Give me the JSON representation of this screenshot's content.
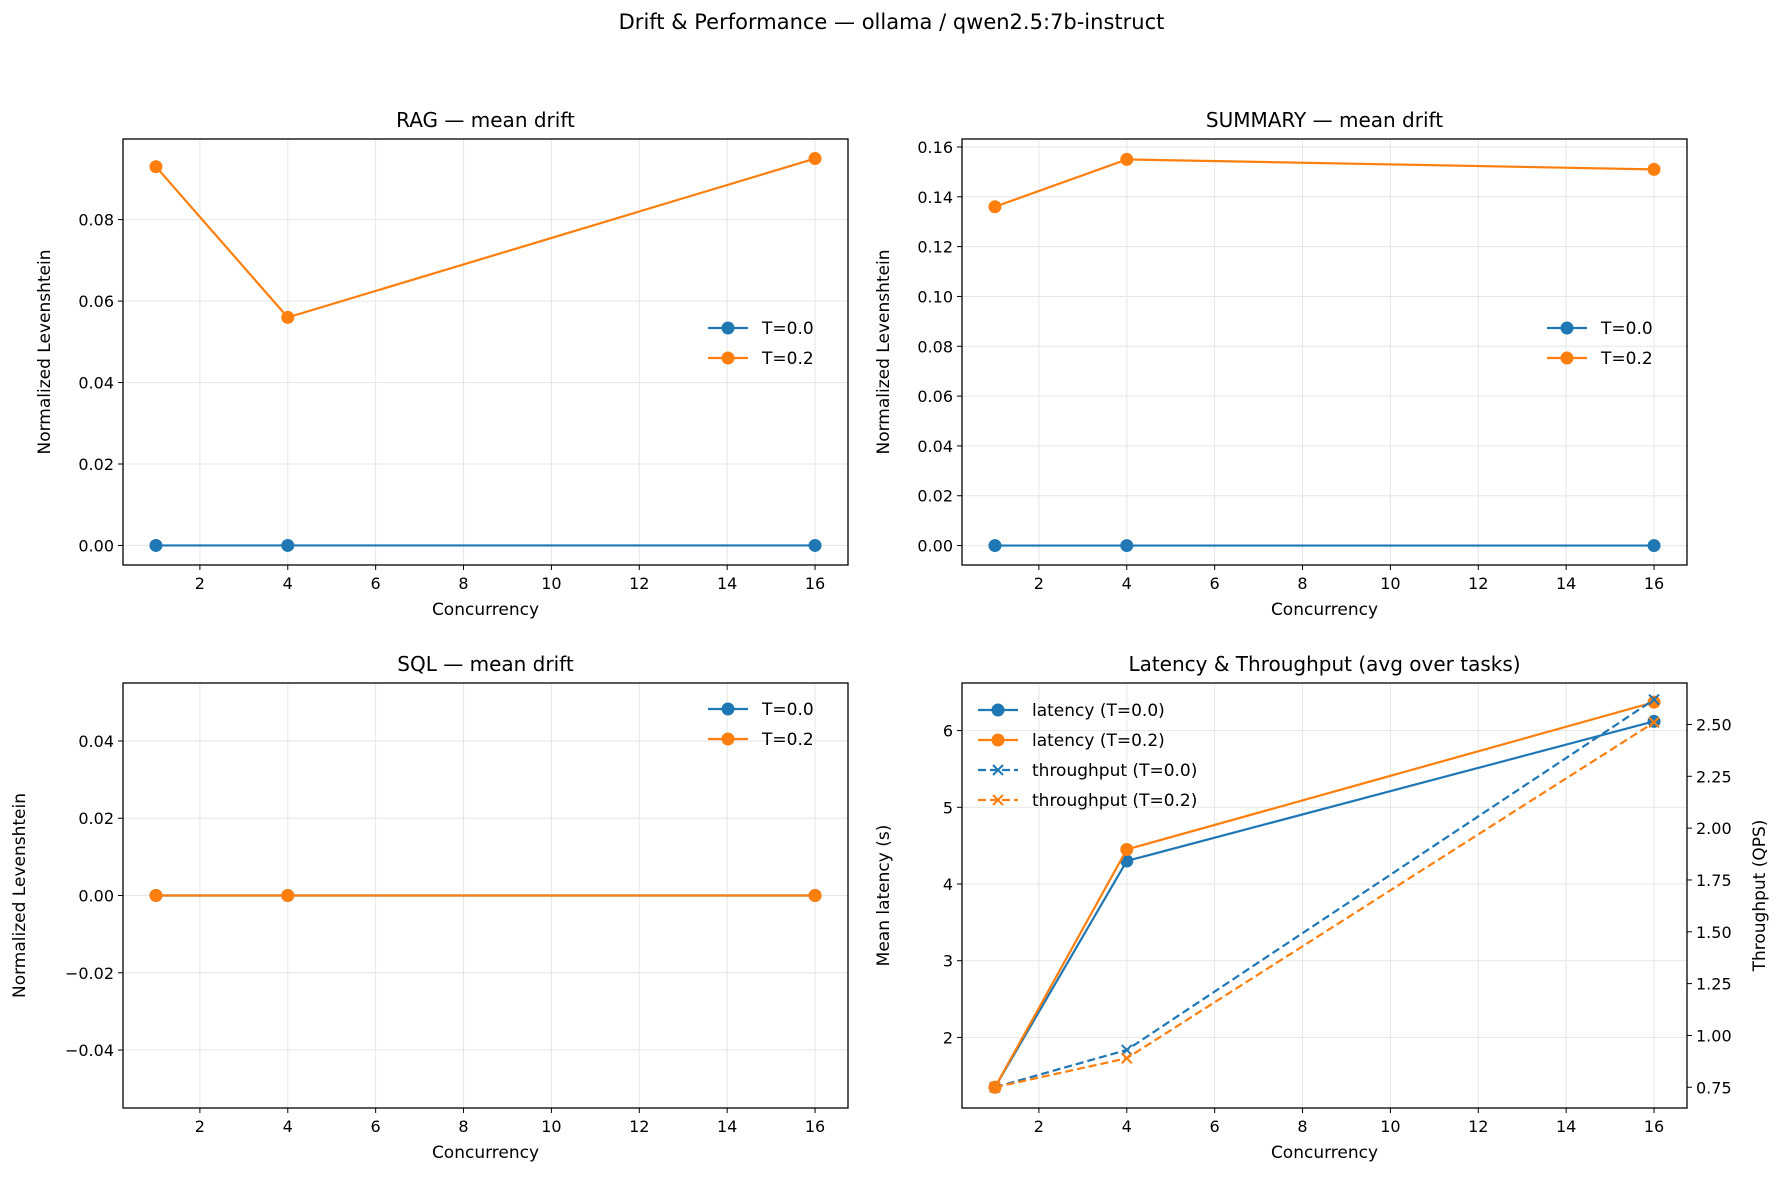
{
  "suptitle": "Drift & Performance — ollama / qwen2.5:7b-instruct",
  "colors": {
    "blue": "#1f77b4",
    "orange": "#ff7f0e",
    "grid": "#e6e6e6"
  },
  "chart_data": [
    {
      "type": "line",
      "title": "RAG — mean drift",
      "xlabel": "Concurrency",
      "ylabel": "Normalized Levenshtein",
      "x": [
        1,
        4,
        16
      ],
      "xlim": [
        0.25,
        16.75
      ],
      "xticks": [
        2,
        4,
        6,
        8,
        10,
        12,
        14,
        16
      ],
      "ylim": [
        -0.0048,
        0.0998
      ],
      "yticks": [
        0,
        0.02,
        0.04,
        0.06,
        0.08
      ],
      "ytick_labels": [
        "0.00",
        "0.02",
        "0.04",
        "0.06",
        "0.08"
      ],
      "grid": true,
      "legend": "center-right",
      "series": [
        {
          "name": "T=0.0",
          "values": [
            0,
            0,
            0
          ],
          "color": "#1f77b4",
          "marker": "o",
          "dash": false
        },
        {
          "name": "T=0.2",
          "values": [
            0.093,
            0.056,
            0.095
          ],
          "color": "#ff7f0e",
          "marker": "o",
          "dash": false
        }
      ]
    },
    {
      "type": "line",
      "title": "SUMMARY — mean drift",
      "xlabel": "Concurrency",
      "ylabel": "Normalized Levenshtein",
      "x": [
        1,
        4,
        16
      ],
      "xlim": [
        0.25,
        16.75
      ],
      "xticks": [
        2,
        4,
        6,
        8,
        10,
        12,
        14,
        16
      ],
      "ylim": [
        -0.0078,
        0.1632
      ],
      "yticks": [
        0,
        0.02,
        0.04,
        0.06,
        0.08,
        0.1,
        0.12,
        0.14,
        0.16
      ],
      "ytick_labels": [
        "0.00",
        "0.02",
        "0.04",
        "0.06",
        "0.08",
        "0.10",
        "0.12",
        "0.14",
        "0.16"
      ],
      "grid": true,
      "legend": "center-right",
      "series": [
        {
          "name": "T=0.0",
          "values": [
            0,
            0,
            0
          ],
          "color": "#1f77b4",
          "marker": "o",
          "dash": false
        },
        {
          "name": "T=0.2",
          "values": [
            0.136,
            0.155,
            0.151
          ],
          "color": "#ff7f0e",
          "marker": "o",
          "dash": false
        }
      ]
    },
    {
      "type": "line",
      "title": "SQL — mean drift",
      "xlabel": "Concurrency",
      "ylabel": "Normalized Levenshtein",
      "x": [
        1,
        4,
        16
      ],
      "xlim": [
        0.25,
        16.75
      ],
      "xticks": [
        2,
        4,
        6,
        8,
        10,
        12,
        14,
        16
      ],
      "ylim": [
        -0.055,
        0.055
      ],
      "yticks": [
        -0.04,
        -0.02,
        0,
        0.02,
        0.04
      ],
      "ytick_labels": [
        "−0.04",
        "−0.02",
        "0.00",
        "0.02",
        "0.04"
      ],
      "grid": true,
      "legend": "top-right",
      "series": [
        {
          "name": "T=0.0",
          "values": [
            0,
            0,
            0
          ],
          "color": "#1f77b4",
          "marker": "o",
          "dash": false
        },
        {
          "name": "T=0.2",
          "values": [
            0,
            0,
            0
          ],
          "color": "#ff7f0e",
          "marker": "o",
          "dash": false
        }
      ]
    },
    {
      "type": "line",
      "title": "Latency & Throughput (avg over tasks)",
      "xlabel": "Concurrency",
      "ylabel": "Mean latency (s)",
      "y2label": "Throughput (QPS)",
      "x": [
        1,
        4,
        16
      ],
      "xlim": [
        0.25,
        16.75
      ],
      "xticks": [
        2,
        4,
        6,
        8,
        10,
        12,
        14,
        16
      ],
      "ylim": [
        1.08,
        6.62
      ],
      "yticks": [
        2,
        3,
        4,
        5,
        6
      ],
      "ytick_labels": [
        "2",
        "3",
        "4",
        "5",
        "6"
      ],
      "y2lim": [
        0.65,
        2.7
      ],
      "y2ticks": [
        0.75,
        1.0,
        1.25,
        1.5,
        1.75,
        2.0,
        2.25,
        2.5
      ],
      "y2tick_labels": [
        "0.75",
        "1.00",
        "1.25",
        "1.50",
        "1.75",
        "2.00",
        "2.25",
        "2.50"
      ],
      "grid": true,
      "legend": "top-left",
      "series": [
        {
          "name": "latency (T=0.0)",
          "values": [
            1.35,
            4.3,
            6.12
          ],
          "color": "#1f77b4",
          "marker": "o",
          "dash": false,
          "axis": "left"
        },
        {
          "name": "latency (T=0.2)",
          "values": [
            1.35,
            4.45,
            6.37
          ],
          "color": "#ff7f0e",
          "marker": "o",
          "dash": false,
          "axis": "left"
        },
        {
          "name": "throughput (T=0.0)",
          "values": [
            0.75,
            0.93,
            2.62
          ],
          "color": "#1f77b4",
          "marker": "x",
          "dash": true,
          "axis": "right"
        },
        {
          "name": "throughput (T=0.2)",
          "values": [
            0.75,
            0.89,
            2.51
          ],
          "color": "#ff7f0e",
          "marker": "x",
          "dash": true,
          "axis": "right"
        }
      ]
    }
  ]
}
